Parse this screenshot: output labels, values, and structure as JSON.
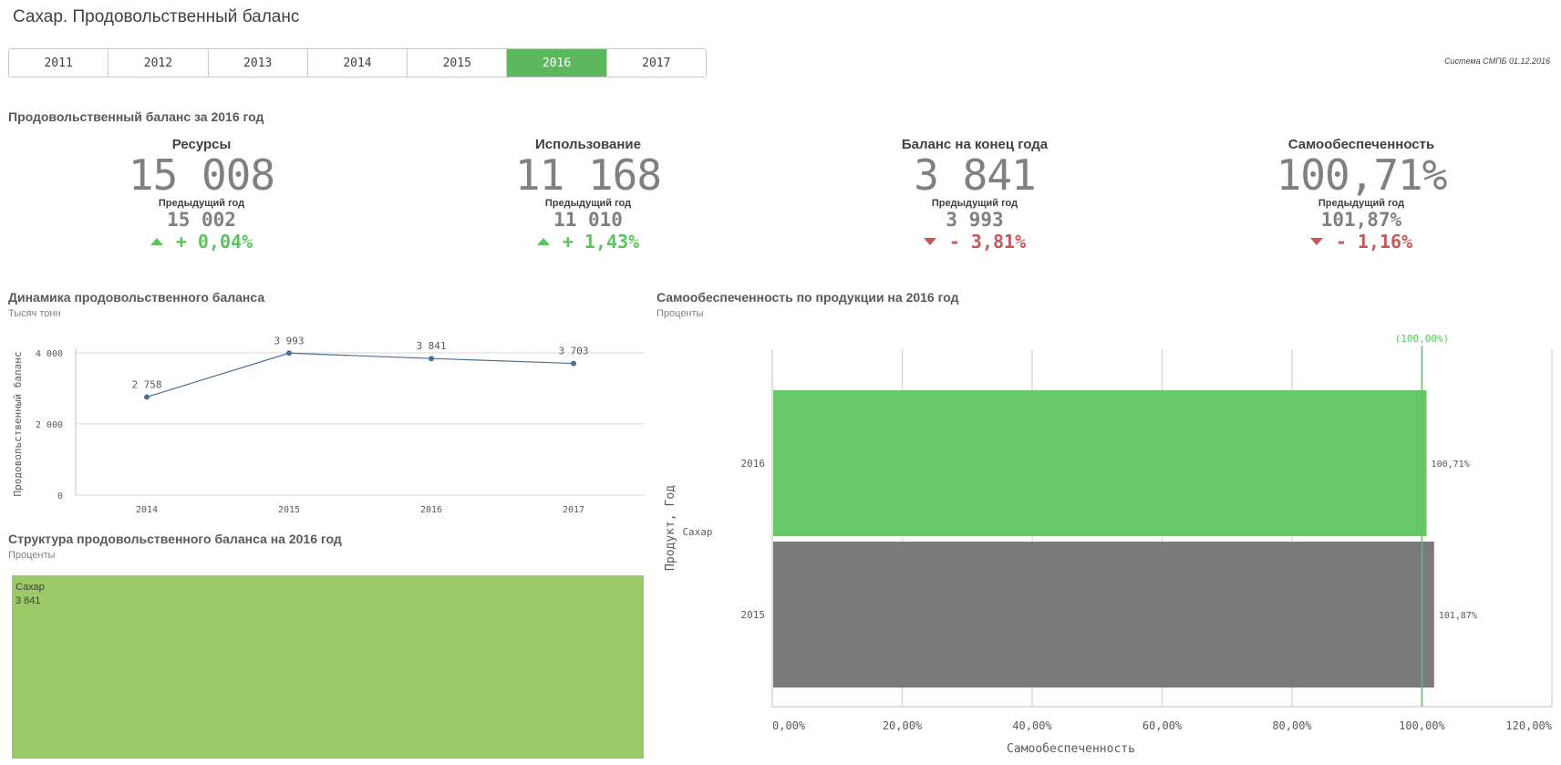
{
  "page": {
    "title": "Сахар. Продовольственный баланс",
    "system_note": "Система СМПБ 01.12.2016"
  },
  "year_tabs": [
    {
      "label": "2011",
      "active": false
    },
    {
      "label": "2012",
      "active": false
    },
    {
      "label": "2013",
      "active": false
    },
    {
      "label": "2014",
      "active": false
    },
    {
      "label": "2015",
      "active": false
    },
    {
      "label": "2016",
      "active": true
    },
    {
      "label": "2017",
      "active": false
    }
  ],
  "kpi_section": {
    "title": "Продовольственный баланс за 2016 год",
    "items": [
      {
        "label": "Ресурсы",
        "value": "15 008",
        "prev_label": "Предыдущий год",
        "prev_value": "15 002",
        "change": "+ 0,04%",
        "trend": "up"
      },
      {
        "label": "Использование",
        "value": "11 168",
        "prev_label": "Предыдущий год",
        "prev_value": "11 010",
        "change": "+ 1,43%",
        "trend": "up"
      },
      {
        "label": "Баланс на конец года",
        "value": "3 841",
        "prev_label": "Предыдущий год",
        "prev_value": "3 993",
        "change": "- 3,81%",
        "trend": "down"
      },
      {
        "label": "Самообеспеченность",
        "value": "100,71%",
        "prev_label": "Предыдущий год",
        "prev_value": "101,87%",
        "change": "- 1,16%",
        "trend": "down"
      }
    ]
  },
  "line_panel": {
    "title": "Динамика продовольственного баланса",
    "subtitle": "Тысяч тонн"
  },
  "bar_panel": {
    "title": "Самообеспеченность по продукции на 2016 год",
    "subtitle": "Проценты"
  },
  "treemap_panel": {
    "title": "Структура продовольственного баланса на 2016 год",
    "subtitle": "Проценты",
    "cell_label": "Сахар",
    "cell_value": "3 841"
  },
  "colors": {
    "accent_green": "#5bb85d",
    "bar_green": "#66c866",
    "bar_gray": "#7a7a7a",
    "treemap_green": "#9bc968",
    "line_blue": "#4a6f9a",
    "down_red": "#c9585b"
  },
  "chart_data": [
    {
      "type": "line",
      "title": "Динамика продовольственного баланса",
      "subtitle": "Тысяч тонн",
      "xlabel": "",
      "ylabel": "Продовольственный баланс",
      "x": [
        "2014",
        "2015",
        "2016",
        "2017"
      ],
      "values": [
        2758,
        3993,
        3841,
        3703
      ],
      "data_labels": [
        "2 758",
        "3 993",
        "3 841",
        "3 703"
      ],
      "ylim": [
        0,
        4000
      ],
      "yticks": [
        0,
        2000,
        4000
      ],
      "ytick_labels": [
        "0",
        "2 000",
        "4 000"
      ],
      "grid": true
    },
    {
      "type": "bar",
      "orientation": "horizontal",
      "title": "Самообеспеченность по продукции на 2016 год",
      "subtitle": "Проценты",
      "xlabel": "Самообеспеченность",
      "ylabel": "Продукт, Год",
      "group": "Сахар",
      "categories": [
        "2016",
        "2015"
      ],
      "values": [
        100.71,
        101.87
      ],
      "data_labels": [
        "100,71%",
        "101,87%"
      ],
      "xlim": [
        0,
        120
      ],
      "xticks": [
        0,
        20,
        40,
        60,
        80,
        100,
        120
      ],
      "xtick_labels": [
        "0,00%",
        "20,00%",
        "40,00%",
        "60,00%",
        "80,00%",
        "100,00%",
        "120,00%"
      ],
      "reference_line": {
        "value": 100,
        "label": "(100,00%)"
      },
      "grid": true
    },
    {
      "type": "treemap",
      "title": "Структура продовольственного баланса на 2016 год",
      "subtitle": "Проценты",
      "categories": [
        "Сахар"
      ],
      "values": [
        3841
      ]
    }
  ]
}
